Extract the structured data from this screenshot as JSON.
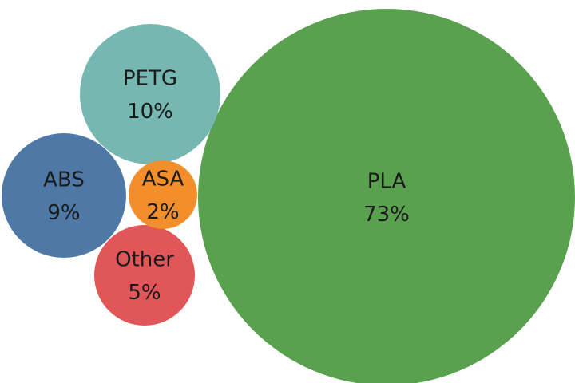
{
  "chart_data": {
    "type": "bubble",
    "series": [
      {
        "label": "PLA",
        "value": 73,
        "value_text": "73%",
        "color": "#59a14f"
      },
      {
        "label": "PETG",
        "value": 10,
        "value_text": "10%",
        "color": "#76b7b2"
      },
      {
        "label": "ABS",
        "value": 9,
        "value_text": "9%",
        "color": "#4e79a7"
      },
      {
        "label": "Other",
        "value": 5,
        "value_text": "5%",
        "color": "#e15759"
      },
      {
        "label": "ASA",
        "value": 2,
        "value_text": "2%",
        "color": "#f28e2b"
      }
    ]
  }
}
